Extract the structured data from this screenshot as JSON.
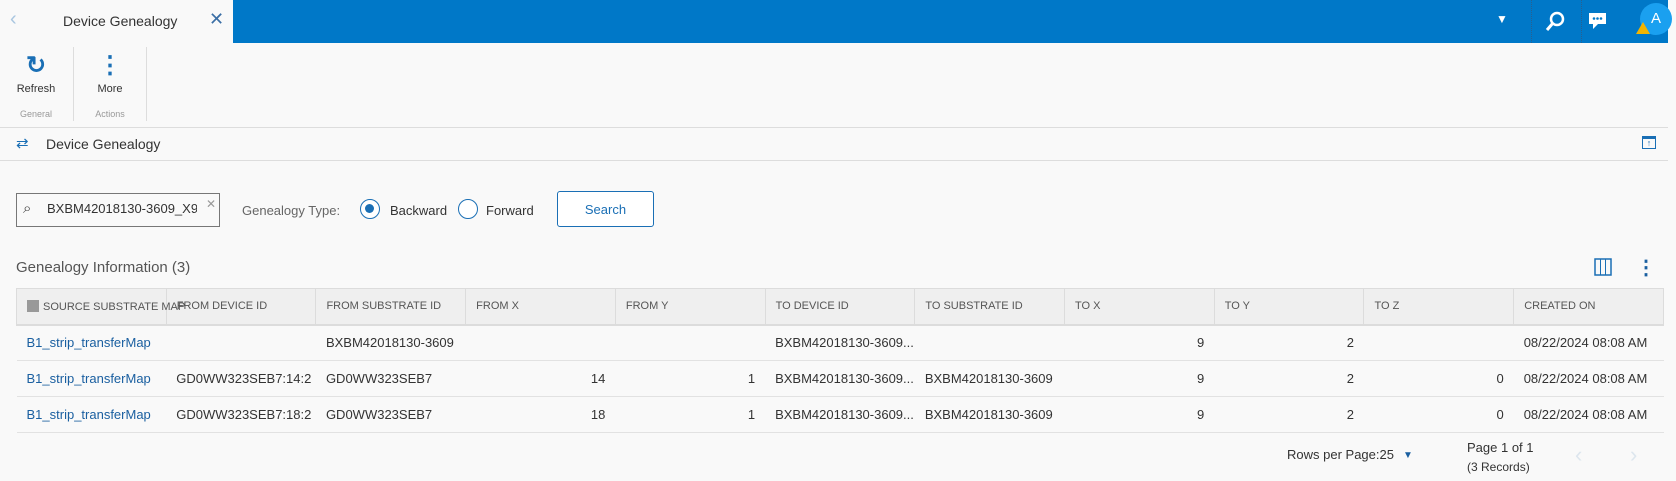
{
  "tab": {
    "title": "Device Genealogy"
  },
  "ribbon": {
    "refresh": "Refresh",
    "more": "More",
    "group_general": "General",
    "group_actions": "Actions"
  },
  "user": {
    "initial": "A"
  },
  "page_title": "Device Genealogy",
  "search": {
    "value": "BXBM42018130-3609_X9",
    "type_label": "Genealogy Type:",
    "backward": "Backward",
    "forward": "Forward",
    "selected": "Backward",
    "button": "Search"
  },
  "section": {
    "title": "Genealogy Information (3)"
  },
  "table": {
    "columns": [
      "SOURCE SUBSTRATE MAP",
      "FROM DEVICE ID",
      "FROM SUBSTRATE ID",
      "FROM X",
      "FROM Y",
      "TO DEVICE ID",
      "TO SUBSTRATE ID",
      "TO X",
      "TO Y",
      "TO Z",
      "CREATED ON"
    ],
    "rows": [
      [
        "B1_strip_transferMap",
        "",
        "BXBM42018130-3609",
        "",
        "",
        "BXBM42018130-3609...",
        "",
        "9",
        "2",
        "",
        "08/22/2024 08:08 AM"
      ],
      [
        "B1_strip_transferMap",
        "GD0WW323SEB7:14:2",
        "GD0WW323SEB7",
        "14",
        "1",
        "BXBM42018130-3609...",
        "BXBM42018130-3609",
        "9",
        "2",
        "0",
        "08/22/2024 08:08 AM"
      ],
      [
        "B1_strip_transferMap",
        "GD0WW323SEB7:18:2",
        "GD0WW323SEB7",
        "18",
        "1",
        "BXBM42018130-3609...",
        "BXBM42018130-3609",
        "9",
        "2",
        "0",
        "08/22/2024 08:08 AM"
      ]
    ]
  },
  "pager": {
    "rows_per_page": "Rows per Page:25",
    "page": "Page 1 of 1",
    "records": "(3 Records)"
  },
  "colors": {
    "brand": "#0078c8",
    "accent": "#1a6fb5",
    "link": "#1a5fa0"
  }
}
